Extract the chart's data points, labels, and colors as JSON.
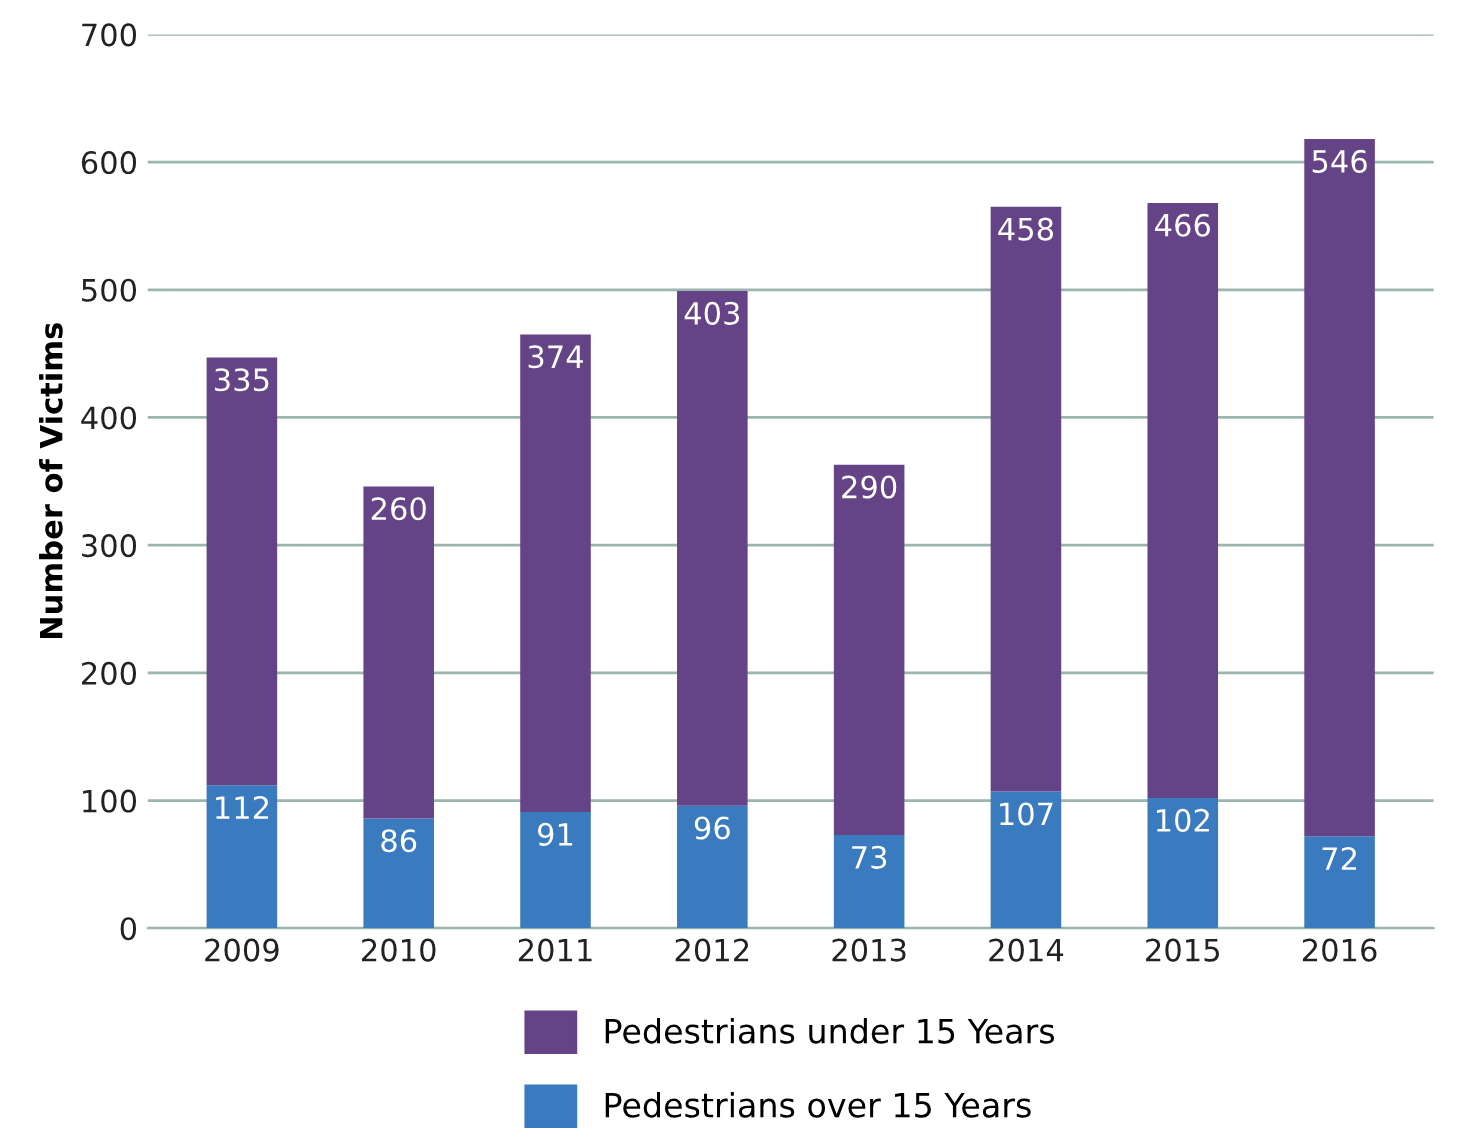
{
  "chart_data": {
    "type": "bar",
    "stacked": true,
    "ylabel": "Number of Victims",
    "categories": [
      "2009",
      "2010",
      "2011",
      "2012",
      "2013",
      "2014",
      "2015",
      "2016"
    ],
    "series": [
      {
        "name": "Pedestrians over 15 Years",
        "color": "#3a7bbf",
        "values": [
          112,
          86,
          91,
          96,
          73,
          107,
          102,
          72
        ]
      },
      {
        "name": "Pedestrians under 15 Years",
        "color": "#654387",
        "values": [
          335,
          260,
          374,
          403,
          290,
          458,
          466,
          546
        ]
      }
    ],
    "ylim": [
      0,
      700
    ],
    "yticks": [
      0,
      100,
      200,
      300,
      400,
      500,
      600,
      700
    ],
    "grid": "y",
    "legend": "bottom",
    "data_labels": true
  }
}
